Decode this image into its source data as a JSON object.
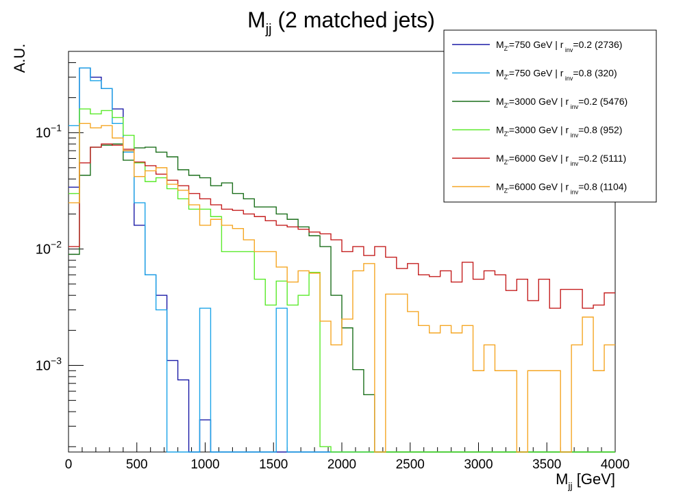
{
  "chart_data": {
    "type": "histogram",
    "title": "M",
    "title_sub": "jj",
    "title_rest": " (2 matched jets)",
    "xlabel": "M",
    "xlabel_sub": "jj",
    "xlabel_rest": " [GeV]",
    "ylabel": "A.U.",
    "y_scale": "log",
    "xlim": [
      0,
      4000
    ],
    "ylim": [
      0.00018,
      0.5
    ],
    "x_ticks": [
      0,
      500,
      1000,
      1500,
      2000,
      2500,
      3000,
      3500,
      4000
    ],
    "y_ticks": [
      {
        "base": "10",
        "exp": "−1",
        "value": 0.1
      },
      {
        "base": "10",
        "exp": "−2",
        "value": 0.01
      },
      {
        "base": "10",
        "exp": "−3",
        "value": 0.001
      }
    ],
    "bin_edges_start": 0,
    "bin_width": 80,
    "legend_position": "top-right",
    "series": [
      {
        "mass": "750 GeV",
        "rinv": "0.2",
        "count": "2736",
        "color": "#1a1aa6",
        "values": [
          0.034,
          0.36,
          0.3,
          0.24,
          0.16,
          0.07,
          0.016,
          0.006,
          0.004,
          0.0011,
          0.00075,
          0,
          0.00034,
          0,
          0,
          0,
          0,
          0,
          0,
          0,
          0,
          0,
          0,
          0,
          0,
          0,
          0,
          0,
          0,
          0,
          0,
          0,
          0,
          0,
          0,
          0,
          0,
          0,
          0,
          0,
          0,
          0,
          0,
          0,
          0,
          0,
          0,
          0,
          0,
          0
        ]
      },
      {
        "mass": "750 GeV",
        "rinv": "0.8",
        "count": "320",
        "color": "#1aa3e8",
        "values": [
          0.115,
          0.36,
          0.28,
          0.24,
          0.12,
          0.068,
          0.025,
          0.006,
          0.003,
          0,
          0,
          0,
          0.0031,
          0,
          0,
          0,
          0,
          0,
          0,
          0.0031,
          0,
          0,
          0,
          0,
          0,
          0,
          0,
          0,
          0,
          0,
          0,
          0,
          0,
          0,
          0,
          0,
          0,
          0,
          0,
          0,
          0,
          0,
          0,
          0,
          0,
          0,
          0,
          0,
          0,
          0
        ]
      },
      {
        "mass": "3000 GeV",
        "rinv": "0.2",
        "count": "5476",
        "color": "#1a6e1a",
        "values": [
          0.009,
          0.043,
          0.075,
          0.078,
          0.08,
          0.058,
          0.074,
          0.075,
          0.068,
          0.062,
          0.048,
          0.043,
          0.041,
          0.035,
          0.037,
          0.03,
          0.027,
          0.023,
          0.023,
          0.02,
          0.018,
          0.0155,
          0.013,
          0.0105,
          0.004,
          0.0021,
          0.00092,
          0.00056,
          0,
          0,
          0,
          0,
          0,
          0,
          0,
          0,
          0,
          0,
          0,
          0,
          0,
          0,
          0,
          0,
          0,
          0,
          0,
          0,
          0,
          0
        ]
      },
      {
        "mass": "3000 GeV",
        "rinv": "0.8",
        "count": "952",
        "color": "#5aea2a",
        "values": [
          0.03,
          0.16,
          0.145,
          0.155,
          0.135,
          0.095,
          0.055,
          0.038,
          0.041,
          0.033,
          0.027,
          0.022,
          0.022,
          0.019,
          0.0095,
          0.0095,
          0.0095,
          0.0055,
          0.0033,
          0.0053,
          0.0033,
          0.004,
          0.0063,
          0.0002,
          0,
          0,
          0,
          0,
          0,
          0,
          0,
          0,
          0,
          0,
          0,
          0,
          0,
          0,
          0,
          0,
          0,
          0,
          0,
          0,
          0,
          0,
          0,
          0,
          0,
          0
        ]
      },
      {
        "mass": "6000 GeV",
        "rinv": "0.2",
        "count": "5111",
        "color": "#c41e1e",
        "values": [
          0.0105,
          0.055,
          0.075,
          0.08,
          0.078,
          0.072,
          0.056,
          0.052,
          0.044,
          0.039,
          0.035,
          0.03,
          0.027,
          0.024,
          0.022,
          0.0215,
          0.02,
          0.019,
          0.0175,
          0.016,
          0.0155,
          0.0148,
          0.014,
          0.0135,
          0.012,
          0.0095,
          0.0105,
          0.0088,
          0.0105,
          0.0085,
          0.0068,
          0.0075,
          0.006,
          0.0058,
          0.0065,
          0.0052,
          0.0077,
          0.0055,
          0.0065,
          0.006,
          0.0044,
          0.0055,
          0.0036,
          0.0055,
          0.0031,
          0.0045,
          0.0045,
          0.0031,
          0.0033,
          0.0042
        ]
      },
      {
        "mass": "6000 GeV",
        "rinv": "0.8",
        "count": "1104",
        "color": "#f5a623",
        "values": [
          0.025,
          0.12,
          0.11,
          0.115,
          0.09,
          0.07,
          0.042,
          0.047,
          0.05,
          0.036,
          0.032,
          0.024,
          0.016,
          0.018,
          0.016,
          0.015,
          0.012,
          0.0095,
          0.0095,
          0.007,
          0.0052,
          0.0065,
          0.0062,
          0.0024,
          0.0015,
          0.0025,
          0.0065,
          0.0075,
          0,
          0.0041,
          0.0041,
          0.0029,
          0.0022,
          0.0019,
          0.0022,
          0.0019,
          0.0022,
          0.0009,
          0.0015,
          0.0009,
          0.0009,
          0,
          0.0009,
          0.0009,
          0.0009,
          0,
          0.0015,
          0.0026,
          0.0009,
          0.0015
        ]
      }
    ]
  }
}
